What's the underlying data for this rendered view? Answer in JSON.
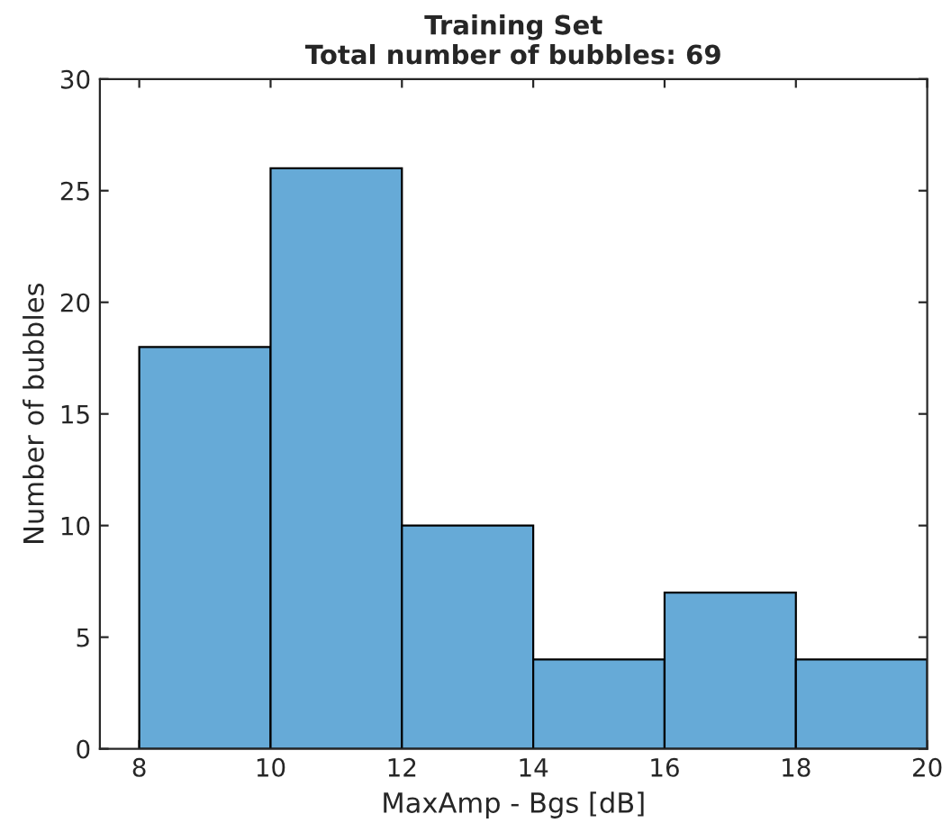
{
  "chart_data": {
    "type": "histogram",
    "title": "Training Set",
    "subtitle": "Total number of bubbles: 69",
    "xlabel": "MaxAmp - Bgs [dB]",
    "ylabel": "Number of bubbles",
    "bins": [
      8,
      10,
      12,
      14,
      16,
      18,
      20
    ],
    "values": [
      18,
      26,
      10,
      4,
      7,
      4
    ],
    "color": "#66aad7",
    "xlim": [
      7.4,
      20
    ],
    "ylim": [
      0,
      30
    ],
    "xticks": [
      8,
      10,
      12,
      14,
      16,
      18,
      20
    ],
    "yticks": [
      0,
      5,
      10,
      15,
      20,
      25,
      30
    ],
    "grid": false,
    "legend": false
  }
}
